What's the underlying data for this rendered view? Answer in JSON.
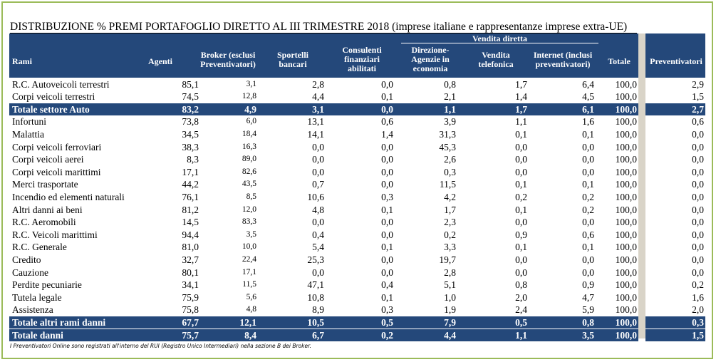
{
  "title": "DISTRIBUZIONE % PREMI PORTAFOGLIO DIRETTO AL III TRIMESTRE 2018 (imprese italiane e rappresentanze imprese extra-UE)",
  "header": {
    "vendita_diretta": "Vendita diretta",
    "rami": "Rami",
    "agenti": "Agenti",
    "broker": "Broker (esclusi Preventivatori)",
    "sportelli": "Sportelli bancari",
    "consulenti": "Consulenti finanziari abilitati",
    "direzione": "Direzione-Agenzie in economia",
    "vendita_tel": "Vendita telefonica",
    "internet": "Internet (inclusi preventivatori)",
    "totale": "Totale",
    "preventivatori": "Preventivatori"
  },
  "rows": [
    {
      "name": "R.C. Autoveicoli terrestri",
      "agenti": "85,1",
      "broker": "3,1",
      "sportelli": "2,8",
      "consulenti": "0,0",
      "direzione": "0,8",
      "tel": "1,7",
      "internet": "6,4",
      "totale": "100,0",
      "prev": "2,9",
      "total": false
    },
    {
      "name": "Corpi veicoli terrestri",
      "agenti": "74,5",
      "broker": "12,8",
      "sportelli": "4,4",
      "consulenti": "0,1",
      "direzione": "2,1",
      "tel": "1,4",
      "internet": "4,5",
      "totale": "100,0",
      "prev": "1,5",
      "total": false
    },
    {
      "name": "Totale settore Auto",
      "agenti": "83,2",
      "broker": "4,9",
      "sportelli": "3,1",
      "consulenti": "0,0",
      "direzione": "1,1",
      "tel": "1,7",
      "internet": "6,1",
      "totale": "100,0",
      "prev": "2,7",
      "total": true
    },
    {
      "name": "Infortuni",
      "agenti": "73,8",
      "broker": "6,0",
      "sportelli": "13,1",
      "consulenti": "0,6",
      "direzione": "3,9",
      "tel": "1,1",
      "internet": "1,6",
      "totale": "100,0",
      "prev": "0,6",
      "total": false
    },
    {
      "name": "Malattia",
      "agenti": "34,5",
      "broker": "18,4",
      "sportelli": "14,1",
      "consulenti": "1,4",
      "direzione": "31,3",
      "tel": "0,1",
      "internet": "0,1",
      "totale": "100,0",
      "prev": "0,0",
      "total": false
    },
    {
      "name": "Corpi veicoli ferroviari",
      "agenti": "38,3",
      "broker": "16,3",
      "sportelli": "0,0",
      "consulenti": "0,0",
      "direzione": "45,3",
      "tel": "0,0",
      "internet": "0,0",
      "totale": "100,0",
      "prev": "0,0",
      "total": false
    },
    {
      "name": "Corpi veicoli aerei",
      "agenti": "8,3",
      "broker": "89,0",
      "sportelli": "0,0",
      "consulenti": "0,0",
      "direzione": "2,6",
      "tel": "0,0",
      "internet": "0,0",
      "totale": "100,0",
      "prev": "0,0",
      "total": false
    },
    {
      "name": "Corpi veicoli marittimi",
      "agenti": "17,1",
      "broker": "82,6",
      "sportelli": "0,0",
      "consulenti": "0,0",
      "direzione": "0,3",
      "tel": "0,0",
      "internet": "0,0",
      "totale": "100,0",
      "prev": "0,0",
      "total": false
    },
    {
      "name": "Merci trasportate",
      "agenti": "44,2",
      "broker": "43,5",
      "sportelli": "0,7",
      "consulenti": "0,0",
      "direzione": "11,5",
      "tel": "0,1",
      "internet": "0,1",
      "totale": "100,0",
      "prev": "0,0",
      "total": false
    },
    {
      "name": "Incendio ed elementi naturali",
      "agenti": "76,1",
      "broker": "8,5",
      "sportelli": "10,6",
      "consulenti": "0,3",
      "direzione": "4,2",
      "tel": "0,2",
      "internet": "0,2",
      "totale": "100,0",
      "prev": "0,0",
      "total": false
    },
    {
      "name": "Altri danni ai beni",
      "agenti": "81,2",
      "broker": "12,0",
      "sportelli": "4,8",
      "consulenti": "0,1",
      "direzione": "1,7",
      "tel": "0,1",
      "internet": "0,2",
      "totale": "100,0",
      "prev": "0,0",
      "total": false
    },
    {
      "name": "R.C. Aeromobili",
      "agenti": "14,5",
      "broker": "83,3",
      "sportelli": "0,0",
      "consulenti": "0,0",
      "direzione": "2,3",
      "tel": "0,0",
      "internet": "0,0",
      "totale": "100,0",
      "prev": "0,0",
      "total": false
    },
    {
      "name": "R.C. Veicoli marittimi",
      "agenti": "94,4",
      "broker": "3,5",
      "sportelli": "0,4",
      "consulenti": "0,0",
      "direzione": "0,2",
      "tel": "0,9",
      "internet": "0,6",
      "totale": "100,0",
      "prev": "0,0",
      "total": false
    },
    {
      "name": "R.C. Generale",
      "agenti": "81,0",
      "broker": "10,0",
      "sportelli": "5,4",
      "consulenti": "0,1",
      "direzione": "3,3",
      "tel": "0,1",
      "internet": "0,1",
      "totale": "100,0",
      "prev": "0,0",
      "total": false
    },
    {
      "name": "Credito",
      "agenti": "32,7",
      "broker": "22,4",
      "sportelli": "25,3",
      "consulenti": "0,0",
      "direzione": "19,7",
      "tel": "0,0",
      "internet": "0,0",
      "totale": "100,0",
      "prev": "0,0",
      "total": false
    },
    {
      "name": "Cauzione",
      "agenti": "80,1",
      "broker": "17,1",
      "sportelli": "0,0",
      "consulenti": "0,0",
      "direzione": "2,8",
      "tel": "0,0",
      "internet": "0,0",
      "totale": "100,0",
      "prev": "0,0",
      "total": false
    },
    {
      "name": "Perdite pecuniarie",
      "agenti": "34,1",
      "broker": "11,5",
      "sportelli": "47,1",
      "consulenti": "0,4",
      "direzione": "5,1",
      "tel": "0,8",
      "internet": "0,9",
      "totale": "100,0",
      "prev": "0,2",
      "total": false
    },
    {
      "name": "Tutela legale",
      "agenti": "75,9",
      "broker": "5,6",
      "sportelli": "10,8",
      "consulenti": "0,1",
      "direzione": "1,0",
      "tel": "2,0",
      "internet": "4,7",
      "totale": "100,0",
      "prev": "1,6",
      "total": false
    },
    {
      "name": "Assistenza",
      "agenti": "75,8",
      "broker": "4,8",
      "sportelli": "8,9",
      "consulenti": "0,3",
      "direzione": "1,9",
      "tel": "2,4",
      "internet": "5,9",
      "totale": "100,0",
      "prev": "2,0",
      "total": false
    },
    {
      "name": "Totale altri rami danni",
      "agenti": "67,7",
      "broker": "12,1",
      "sportelli": "10,5",
      "consulenti": "0,5",
      "direzione": "7,9",
      "tel": "0,5",
      "internet": "0,8",
      "totale": "100,0",
      "prev": "0,3",
      "total": true
    },
    {
      "name": "Totale danni",
      "agenti": "75,7",
      "broker": "8,4",
      "sportelli": "6,7",
      "consulenti": "0,2",
      "direzione": "4,4",
      "tel": "1,1",
      "internet": "3,5",
      "totale": "100,0",
      "prev": "1,5",
      "total": true
    }
  ],
  "footnote": "I Preventivatori Online sono registrati all'interno del RUI (Registro Unico Intermediari) nella sezione B dei Broker."
}
